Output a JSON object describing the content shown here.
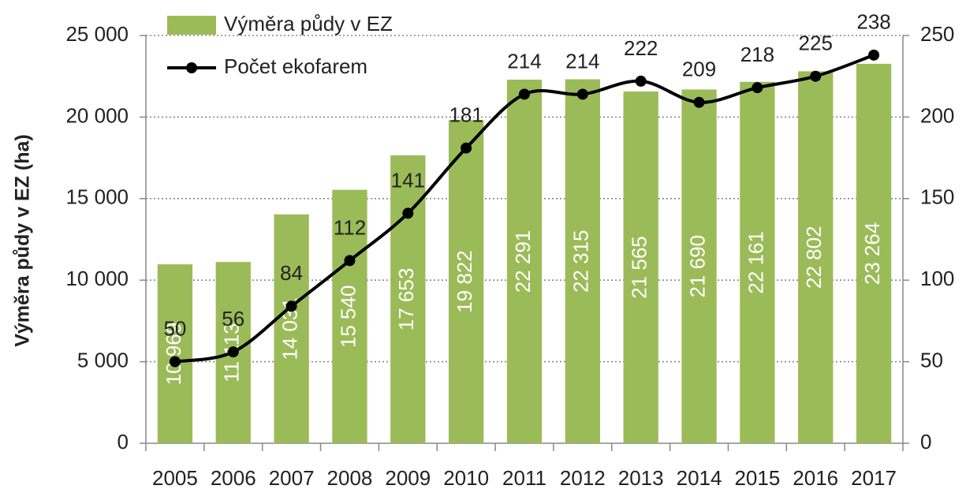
{
  "chart_data": {
    "type": "combo",
    "y_label": "Výměra půdy v EZ (ha)",
    "categories": [
      "2005",
      "2006",
      "2007",
      "2008",
      "2009",
      "2010",
      "2011",
      "2012",
      "2013",
      "2014",
      "2015",
      "2016",
      "2017"
    ],
    "series": [
      {
        "name": "Výměra půdy v EZ",
        "type": "bar",
        "color": "#9bbb59",
        "values": [
          10969,
          11113,
          14031,
          15540,
          17653,
          19822,
          22291,
          22315,
          21565,
          21690,
          22161,
          22802,
          23264
        ],
        "value_labels": [
          "10 969",
          "11 113",
          "14 031",
          "15 540",
          "17 653",
          "19 822",
          "22 291",
          "22 315",
          "21 565",
          "21 690",
          "22 161",
          "22 802",
          "23 264"
        ]
      },
      {
        "name": "Počet ekofarem",
        "type": "line",
        "axis": "y2",
        "color": "#000000",
        "values": [
          50,
          56,
          84,
          112,
          141,
          181,
          214,
          214,
          222,
          209,
          218,
          225,
          238
        ]
      }
    ],
    "ylim": [
      0,
      25000
    ],
    "yticks": [
      0,
      {
        "value": 5000,
        "label": "5 000"
      },
      {
        "value": 10000,
        "label": "10 000"
      },
      {
        "value": 15000,
        "label": "15 000"
      },
      {
        "value": 20000,
        "label": "20 000"
      },
      {
        "value": 25000,
        "label": "25 000"
      }
    ],
    "y2lim": [
      0,
      250
    ],
    "y2ticks": [
      0,
      50,
      100,
      150,
      200,
      250
    ],
    "grid": true,
    "legend": "top-left"
  }
}
